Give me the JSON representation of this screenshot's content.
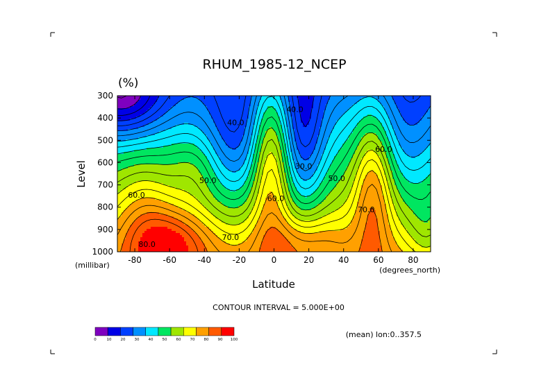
{
  "chart_data": {
    "type": "heatmap",
    "title": "RHUM_1985-12_NCEP",
    "units": "(%)",
    "xlabel": "Latitude",
    "ylabel": "Level",
    "x_unit_label": "(degrees_north)",
    "y_unit_label": "(millibar)",
    "xlim": [
      -90,
      90
    ],
    "ylim": [
      1000,
      300
    ],
    "xticks": [
      -80,
      -60,
      -40,
      -20,
      0,
      20,
      40,
      60,
      80
    ],
    "yticks": [
      300,
      400,
      500,
      600,
      700,
      800,
      900,
      1000
    ],
    "x_tick_labels": [
      "-80",
      "-60",
      "-40",
      "-20",
      "0",
      "20",
      "40",
      "60",
      "80"
    ],
    "y_tick_labels": [
      "300",
      "400",
      "500",
      "600",
      "700",
      "800",
      "900",
      "1000"
    ],
    "contour_interval_text": "CONTOUR INTERVAL = 5.000E+00",
    "mean_text": "(mean) lon:0..357.5",
    "levels": [
      0,
      10,
      20,
      30,
      40,
      50,
      60,
      70,
      80,
      90,
      100
    ],
    "level_labels": [
      "0",
      "10",
      "20",
      "30",
      "40",
      "50",
      "60",
      "70",
      "80",
      "90",
      "100"
    ],
    "colors": [
      "#7f00bf",
      "#0000e6",
      "#0040ff",
      "#0090ff",
      "#00e8ff",
      "#00e660",
      "#9fe600",
      "#ffff00",
      "#ffa000",
      "#ff5a00",
      "#ff0000"
    ],
    "contour_labels": [
      {
        "text": "40.0",
        "lat": -22,
        "lev": 420
      },
      {
        "text": "40.0",
        "lat": 12,
        "lev": 360
      },
      {
        "text": "30.0",
        "lat": 17,
        "lev": 615
      },
      {
        "text": "50.0",
        "lat": -38,
        "lev": 680
      },
      {
        "text": "50.0",
        "lat": 36,
        "lev": 670
      },
      {
        "text": "60.0",
        "lat": -79,
        "lev": 745
      },
      {
        "text": "60.0",
        "lat": 1,
        "lev": 760
      },
      {
        "text": "60.0",
        "lat": 63,
        "lev": 540
      },
      {
        "text": "70.0",
        "lat": -25,
        "lev": 935
      },
      {
        "text": "70.0",
        "lat": 53,
        "lev": 810
      },
      {
        "text": "80.0",
        "lat": -73,
        "lev": 965
      }
    ]
  }
}
